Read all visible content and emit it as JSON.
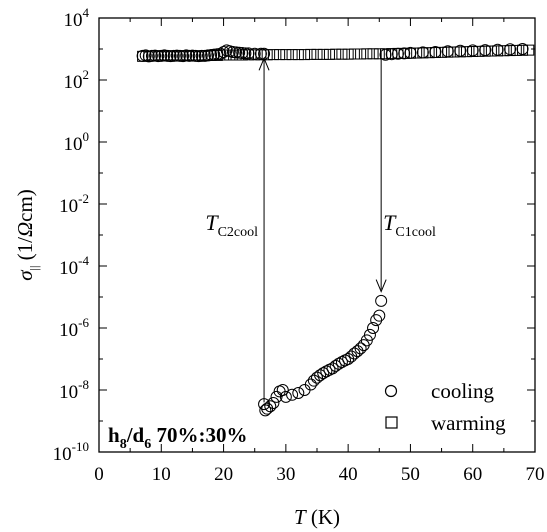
{
  "chart_data": {
    "type": "scatter",
    "title": "",
    "xlabel": {
      "symbol": "T",
      "unit": " (K)"
    },
    "ylabel": {
      "symbol": "σ",
      "sub": "||",
      "unit_pre": " (1/",
      "unit_omega": "Ω",
      "unit_post": "cm)"
    },
    "x_ticks": [
      0,
      10,
      20,
      30,
      40,
      50,
      60,
      70
    ],
    "y_scale": "log",
    "y_ticks": [
      {
        "value": 1e-10,
        "base": "10",
        "exp": "-10"
      },
      {
        "value": 1e-08,
        "base": "10",
        "exp": "-8"
      },
      {
        "value": 1e-06,
        "base": "10",
        "exp": "-6"
      },
      {
        "value": 0.0001,
        "base": "10",
        "exp": "-4"
      },
      {
        "value": 0.01,
        "base": "10",
        "exp": "-2"
      },
      {
        "value": 1,
        "base": "10",
        "exp": "0"
      },
      {
        "value": 100,
        "base": "10",
        "exp": "2"
      },
      {
        "value": 10000,
        "base": "10",
        "exp": "4"
      }
    ],
    "xlim": [
      0,
      70
    ],
    "ylim": [
      1e-10,
      10000
    ],
    "grid": false,
    "legend": {
      "position": "bottom-right",
      "entries": [
        {
          "label": "cooling",
          "marker": "circle"
        },
        {
          "label": "warming",
          "marker": "square"
        }
      ]
    },
    "sample_label": {
      "h": "h",
      "h_sub": "8",
      "slash": "/",
      "d": "d",
      "d_sub": "6",
      "rest": " 70%:30%"
    },
    "annotations": [
      {
        "main": "T",
        "sub": "C2cool",
        "arrow_x": 26.5,
        "arrow_from": 4e-09,
        "arrow_to": 500
      },
      {
        "main": "T",
        "sub": "C1cool",
        "arrow_x": 45.3,
        "arrow_from": 800,
        "arrow_to": 1.5e-05
      }
    ],
    "series": [
      {
        "name": "cooling",
        "marker": "circle",
        "x": [
          7,
          7.5,
          8,
          8.5,
          9,
          9.5,
          10,
          10.5,
          11,
          11.5,
          12,
          12.5,
          13,
          13.5,
          14,
          14.5,
          15,
          15.5,
          16,
          16.5,
          17,
          17.5,
          18,
          18.5,
          19,
          19.5,
          20,
          20.5,
          21,
          21.5,
          22,
          22.5,
          23,
          23.5,
          24,
          25,
          26,
          26.5,
          26.5,
          26.7,
          27,
          27.5,
          28,
          28.5,
          29,
          29.5,
          30,
          31,
          32,
          33,
          34,
          34.5,
          35,
          35.5,
          36,
          36.5,
          37,
          37.5,
          38,
          38.5,
          39,
          39.5,
          40,
          40.5,
          41,
          41.5,
          42,
          42.5,
          43,
          43.5,
          44,
          44.5,
          45,
          45.3,
          46,
          47,
          48,
          49,
          50,
          52,
          54,
          56,
          58,
          60,
          62,
          64,
          66,
          68
        ],
        "y": [
          600,
          620,
          580,
          600,
          610,
          590,
          600,
          620,
          600,
          590,
          600,
          610,
          600,
          590,
          620,
          600,
          610,
          600,
          590,
          600,
          600,
          620,
          640,
          660,
          680,
          700,
          800,
          900,
          850,
          800,
          780,
          760,
          740,
          720,
          720,
          700,
          700,
          700,
          3.5e-09,
          2.2e-09,
          2.5e-09,
          3e-09,
          3.8e-09,
          6e-09,
          9e-09,
          1e-08,
          6e-09,
          7e-09,
          8e-09,
          1e-08,
          1.5e-08,
          2e-08,
          2.5e-08,
          3e-08,
          3.5e-08,
          4e-08,
          4.5e-08,
          5e-08,
          6e-08,
          7e-08,
          8e-08,
          9e-08,
          1e-07,
          1.2e-07,
          1.5e-07,
          1.8e-07,
          2.2e-07,
          2.8e-07,
          4e-07,
          6e-07,
          1e-06,
          1.8e-06,
          2.5e-06,
          7.5e-06,
          650,
          680,
          700,
          720,
          750,
          780,
          800,
          850,
          880,
          900,
          920,
          950,
          980,
          1000
        ]
      },
      {
        "name": "warming",
        "marker": "square",
        "x": [
          7,
          8,
          9,
          10,
          11,
          12,
          13,
          14,
          15,
          16,
          17,
          18,
          19,
          20,
          21,
          22,
          23,
          24,
          25,
          26,
          27,
          28,
          29,
          30,
          31,
          32,
          33,
          34,
          35,
          36,
          37,
          38,
          39,
          40,
          41,
          42,
          43,
          44,
          45,
          46,
          47,
          48,
          49,
          50,
          51,
          52,
          53,
          54,
          55,
          56,
          57,
          58,
          59,
          60,
          61,
          62,
          63,
          64,
          65,
          66,
          67,
          68,
          69
        ],
        "y": [
          580,
          590,
          600,
          600,
          600,
          600,
          600,
          610,
          600,
          600,
          610,
          620,
          620,
          640,
          640,
          640,
          640,
          650,
          650,
          650,
          650,
          660,
          660,
          660,
          660,
          660,
          660,
          670,
          670,
          670,
          670,
          680,
          680,
          680,
          690,
          690,
          700,
          700,
          700,
          700,
          710,
          720,
          720,
          730,
          740,
          750,
          760,
          770,
          780,
          790,
          800,
          810,
          820,
          830,
          840,
          850,
          860,
          870,
          880,
          890,
          900,
          910,
          920
        ]
      }
    ]
  }
}
